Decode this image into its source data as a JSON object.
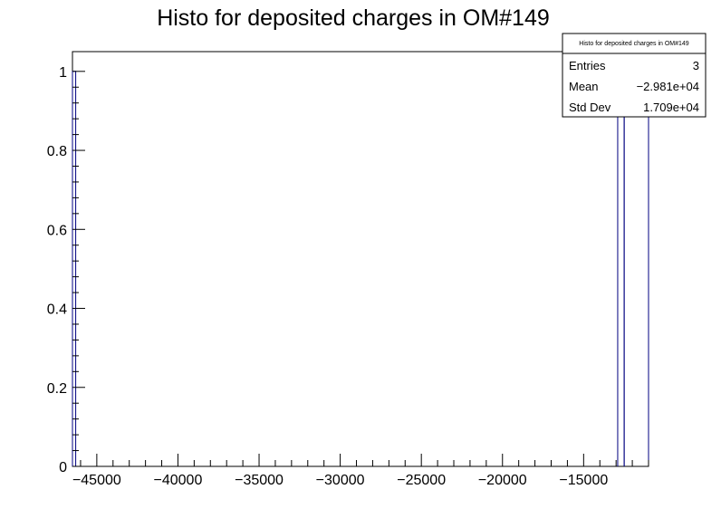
{
  "chart_data": {
    "type": "histogram",
    "title": "Histo for deposited charges in OM#149",
    "xlabel": "",
    "ylabel": "",
    "xlim": [
      -46500,
      -11000
    ],
    "ylim": [
      0,
      1.05
    ],
    "x_ticks": [
      -45000,
      -40000,
      -35000,
      -30000,
      -25000,
      -20000,
      -15000
    ],
    "x_tick_labels": [
      "−45000",
      "−40000",
      "−35000",
      "−30000",
      "−25000",
      "−20000",
      "−15000"
    ],
    "y_ticks": [
      0,
      0.2,
      0.4,
      0.6,
      0.8,
      1
    ],
    "y_tick_labels": [
      "0",
      "0.2",
      "0.4",
      "0.6",
      "0.8",
      "1"
    ],
    "bins": [
      {
        "x0": -46500,
        "x1": -46300,
        "value": 1
      },
      {
        "x0": -12900,
        "x1": -12500,
        "value": 1
      },
      {
        "x0": -12500,
        "x1": -11000,
        "value": 1
      }
    ],
    "line_color": "#000080",
    "stats_box": {
      "title": "Histo for deposited charges in OM#149",
      "rows": [
        {
          "label": "Entries",
          "value": "3"
        },
        {
          "label": "Mean",
          "value": "−2.981e+04"
        },
        {
          "label": "Std Dev",
          "value": "1.709e+04"
        }
      ]
    }
  }
}
